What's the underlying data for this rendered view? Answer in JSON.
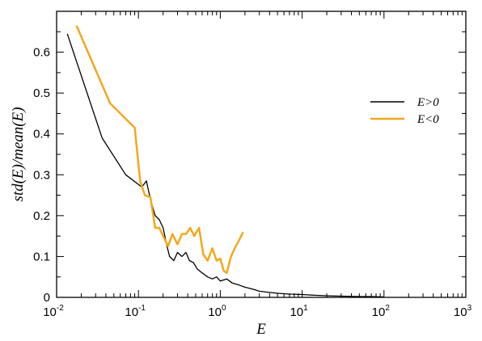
{
  "chart_data": {
    "type": "line",
    "xlabel": "E",
    "ylabel": "std(E)/mean(E)",
    "xscale": "log",
    "xlim": [
      0.01,
      1000
    ],
    "ylim": [
      0,
      0.7
    ],
    "x_ticks": [
      {
        "base": "10",
        "exp": "-2",
        "value": 0.01
      },
      {
        "base": "10",
        "exp": "-1",
        "value": 0.1
      },
      {
        "base": "10",
        "exp": "0",
        "value": 1
      },
      {
        "base": "10",
        "exp": "1",
        "value": 10
      },
      {
        "base": "10",
        "exp": "2",
        "value": 100
      },
      {
        "base": "10",
        "exp": "3",
        "value": 1000
      }
    ],
    "y_ticks": [
      "0",
      "0.1",
      "0.2",
      "0.3",
      "0.4",
      "0.5",
      "0.6"
    ],
    "legend_position": "right",
    "series": [
      {
        "name": "E>0",
        "color": "#000000",
        "x": [
          0.0135,
          0.036,
          0.07,
          0.11,
          0.125,
          0.14,
          0.16,
          0.18,
          0.2,
          0.22,
          0.24,
          0.27,
          0.3,
          0.34,
          0.38,
          0.42,
          0.47,
          0.52,
          0.6,
          0.7,
          0.8,
          0.9,
          1.0,
          1.2,
          1.4,
          1.7,
          2.0,
          2.5,
          3,
          4,
          5,
          7,
          10,
          15,
          20,
          30,
          50,
          70,
          100
        ],
        "y": [
          0.645,
          0.39,
          0.3,
          0.27,
          0.285,
          0.24,
          0.2,
          0.19,
          0.17,
          0.13,
          0.1,
          0.09,
          0.11,
          0.1,
          0.11,
          0.09,
          0.085,
          0.07,
          0.06,
          0.05,
          0.045,
          0.05,
          0.04,
          0.045,
          0.035,
          0.03,
          0.025,
          0.02,
          0.015,
          0.012,
          0.01,
          0.008,
          0.007,
          0.005,
          0.004,
          0.003,
          0.002,
          0.002,
          0.001
        ]
      },
      {
        "name": "E<0",
        "color": "#f2a81d",
        "x": [
          0.0175,
          0.045,
          0.09,
          0.105,
          0.12,
          0.14,
          0.16,
          0.18,
          0.2,
          0.23,
          0.26,
          0.3,
          0.34,
          0.38,
          0.43,
          0.48,
          0.55,
          0.62,
          0.7,
          0.8,
          0.9,
          1.0,
          1.1,
          1.2,
          1.35,
          1.5,
          1.7,
          1.9
        ],
        "y": [
          0.665,
          0.475,
          0.415,
          0.285,
          0.25,
          0.245,
          0.17,
          0.17,
          0.15,
          0.125,
          0.155,
          0.13,
          0.155,
          0.155,
          0.17,
          0.15,
          0.17,
          0.105,
          0.09,
          0.12,
          0.09,
          0.095,
          0.065,
          0.06,
          0.1,
          0.12,
          0.14,
          0.16
        ]
      }
    ]
  }
}
